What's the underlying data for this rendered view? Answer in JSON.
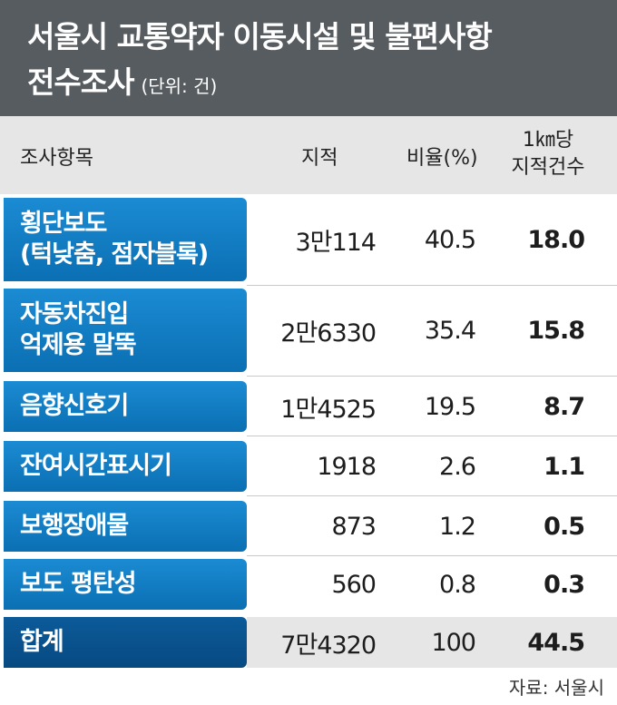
{
  "title": {
    "line1": "서울시 교통약자 이동시설 및 불편사항",
    "line2": "전수조사",
    "unit": "(단위: 건)"
  },
  "header": {
    "item": "조사항목",
    "count": "지적",
    "ratio": "비율(%)",
    "per_km_line1": "1㎞당",
    "per_km_line2": "지적건수"
  },
  "rows": [
    {
      "label_line1": "횡단보도",
      "label_line2": "(턱낮춤, 점자블록)",
      "count": "3만114",
      "ratio": "40.5",
      "per_km": "18.0"
    },
    {
      "label_line1": "자동차진입",
      "label_line2": "억제용 말뚝",
      "count": "2만6330",
      "ratio": "35.4",
      "per_km": "15.8"
    },
    {
      "label_line1": "음향신호기",
      "label_line2": "",
      "count": "1만4525",
      "ratio": "19.5",
      "per_km": "8.7"
    },
    {
      "label_line1": "잔여시간표시기",
      "label_line2": "",
      "count": "1918",
      "ratio": "2.6",
      "per_km": "1.1"
    },
    {
      "label_line1": "보행장애물",
      "label_line2": "",
      "count": "873",
      "ratio": "1.2",
      "per_km": "0.5"
    },
    {
      "label_line1": "보도 평탄성",
      "label_line2": "",
      "count": "560",
      "ratio": "0.8",
      "per_km": "0.3"
    }
  ],
  "total": {
    "label": "합계",
    "count": "7만4320",
    "ratio": "100",
    "per_km": "44.5"
  },
  "source": "자료: 서울시",
  "colors": {
    "title_bg": "#575c60",
    "header_bg": "#e6e6e7",
    "row_label": "#1b8bd3",
    "total_label": "#0c5a99"
  },
  "chart_data": {
    "type": "table",
    "title": "서울시 교통약자 이동시설 및 불편사항 전수조사",
    "unit": "(단위: 건)",
    "columns": [
      "조사항목",
      "지적",
      "비율(%)",
      "1㎞당 지적건수"
    ],
    "rows": [
      [
        "횡단보도(턱낮춤, 점자블록)",
        30114,
        40.5,
        18.0
      ],
      [
        "자동차진입 억제용 말뚝",
        26330,
        35.4,
        15.8
      ],
      [
        "음향신호기",
        14525,
        19.5,
        8.7
      ],
      [
        "잔여시간표시기",
        1918,
        2.6,
        1.1
      ],
      [
        "보행장애물",
        873,
        1.2,
        0.5
      ],
      [
        "보도 평탄성",
        560,
        0.8,
        0.3
      ],
      [
        "합계",
        74320,
        100,
        44.5
      ]
    ]
  }
}
